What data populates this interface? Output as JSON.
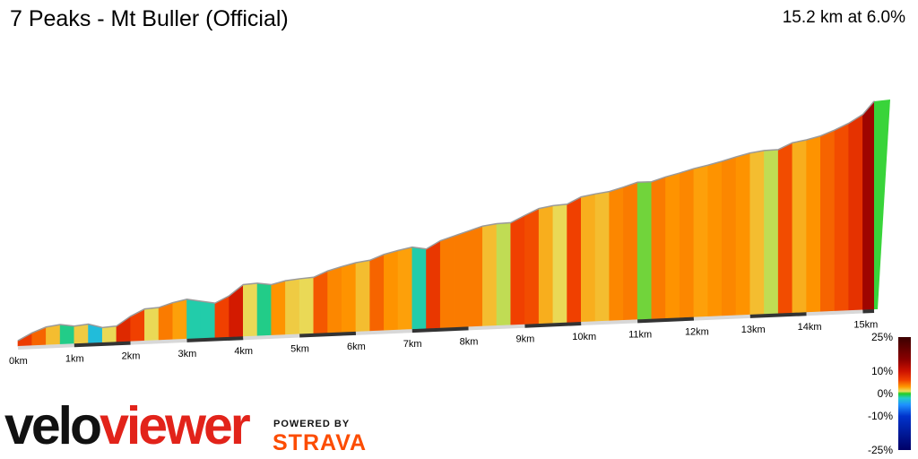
{
  "header": {
    "title": "7 Peaks - Mt Buller (Official)",
    "summary": "15.2 km at 6.0%"
  },
  "branding": {
    "logo_part1": "velo",
    "logo_part2": "viewer",
    "powered_by": "POWERED BY",
    "strava": "STRAVA",
    "colors": {
      "velo": "#111111",
      "viewer": "#e2231a",
      "strava": "#fc4c02"
    }
  },
  "legend": {
    "labels": [
      "25%",
      "10%",
      "0%",
      "-10%",
      "-25%"
    ],
    "values": [
      25,
      10,
      0,
      -10,
      -25
    ]
  },
  "chart_data": {
    "type": "area",
    "title": "7 Peaks - Mt Buller (Official)",
    "x_unit": "km",
    "xlim": [
      0,
      15.2
    ],
    "x_ticks": [
      {
        "value": 0,
        "label": "0km"
      },
      {
        "value": 1,
        "label": "1km"
      },
      {
        "value": 2,
        "label": "2km"
      },
      {
        "value": 3,
        "label": "3km"
      },
      {
        "value": 4,
        "label": "4km"
      },
      {
        "value": 5,
        "label": "5km"
      },
      {
        "value": 6,
        "label": "6km"
      },
      {
        "value": 7,
        "label": "7km"
      },
      {
        "value": 8,
        "label": "8km"
      },
      {
        "value": 9,
        "label": "9km"
      },
      {
        "value": 10,
        "label": "10km"
      },
      {
        "value": 11,
        "label": "11km"
      },
      {
        "value": 12,
        "label": "12km"
      },
      {
        "value": 13,
        "label": "13km"
      },
      {
        "value": 14,
        "label": "14km"
      },
      {
        "value": 15,
        "label": "15km"
      }
    ],
    "distance_km": [
      0,
      0.25,
      0.5,
      0.75,
      1.0,
      1.25,
      1.5,
      1.75,
      2.0,
      2.25,
      2.5,
      2.75,
      3.0,
      3.25,
      3.5,
      3.75,
      4.0,
      4.25,
      4.5,
      4.75,
      5.0,
      5.25,
      5.5,
      5.75,
      6.0,
      6.25,
      6.5,
      6.75,
      7.0,
      7.25,
      7.5,
      7.75,
      8.0,
      8.25,
      8.5,
      8.75,
      9.0,
      9.25,
      9.5,
      9.75,
      10.0,
      10.25,
      10.5,
      10.75,
      11.0,
      11.25,
      11.5,
      11.75,
      12.0,
      12.25,
      12.5,
      12.75,
      13.0,
      13.25,
      13.5,
      13.75,
      14.0,
      14.25,
      14.5,
      14.75,
      15.0,
      15.2
    ],
    "elevation_rel_m": [
      0,
      16,
      28,
      33,
      30,
      34,
      27,
      30,
      50,
      65,
      68,
      78,
      85,
      81,
      77,
      92,
      115,
      118,
      115,
      123,
      127,
      130,
      143,
      152,
      160,
      165,
      177,
      185,
      192,
      188,
      205,
      215,
      225,
      235,
      240,
      242,
      257,
      271,
      277,
      280,
      295,
      301,
      306,
      315,
      325,
      326,
      336,
      344,
      353,
      360,
      368,
      377,
      385,
      390,
      392,
      406,
      412,
      420,
      432,
      446,
      464,
      491
    ],
    "gradient_pct": [
      6.4,
      4.8,
      2.0,
      -1.2,
      1.6,
      -2.8,
      1.2,
      8.0,
      6.0,
      1.2,
      4.0,
      2.8,
      -1.6,
      -1.6,
      6.0,
      9.2,
      1.2,
      -1.2,
      3.2,
      1.6,
      1.2,
      5.2,
      3.6,
      3.2,
      2.0,
      4.8,
      3.2,
      2.8,
      -1.6,
      6.8,
      4.0,
      4.0,
      4.0,
      2.0,
      0.8,
      6.0,
      5.6,
      2.4,
      1.2,
      6.0,
      2.4,
      2.0,
      3.6,
      4.0,
      0.4,
      4.0,
      3.2,
      3.6,
      2.8,
      3.2,
      3.6,
      3.2,
      2.0,
      0.8,
      5.6,
      2.4,
      3.2,
      4.8,
      5.6,
      7.2,
      13.5
    ],
    "gradient_scale": [
      {
        "value": 25,
        "color": "#3b0000"
      },
      {
        "value": 15,
        "color": "#8b0000"
      },
      {
        "value": 10,
        "color": "#cc1100"
      },
      {
        "value": 6,
        "color": "#f04000"
      },
      {
        "value": 3,
        "color": "#ff9900"
      },
      {
        "value": 1,
        "color": "#e8e060"
      },
      {
        "value": 0,
        "color": "#22cc22"
      },
      {
        "value": -2,
        "color": "#22cccc"
      },
      {
        "value": -5,
        "color": "#1e90ff"
      },
      {
        "value": -10,
        "color": "#0033cc"
      },
      {
        "value": -25,
        "color": "#000066"
      }
    ]
  }
}
